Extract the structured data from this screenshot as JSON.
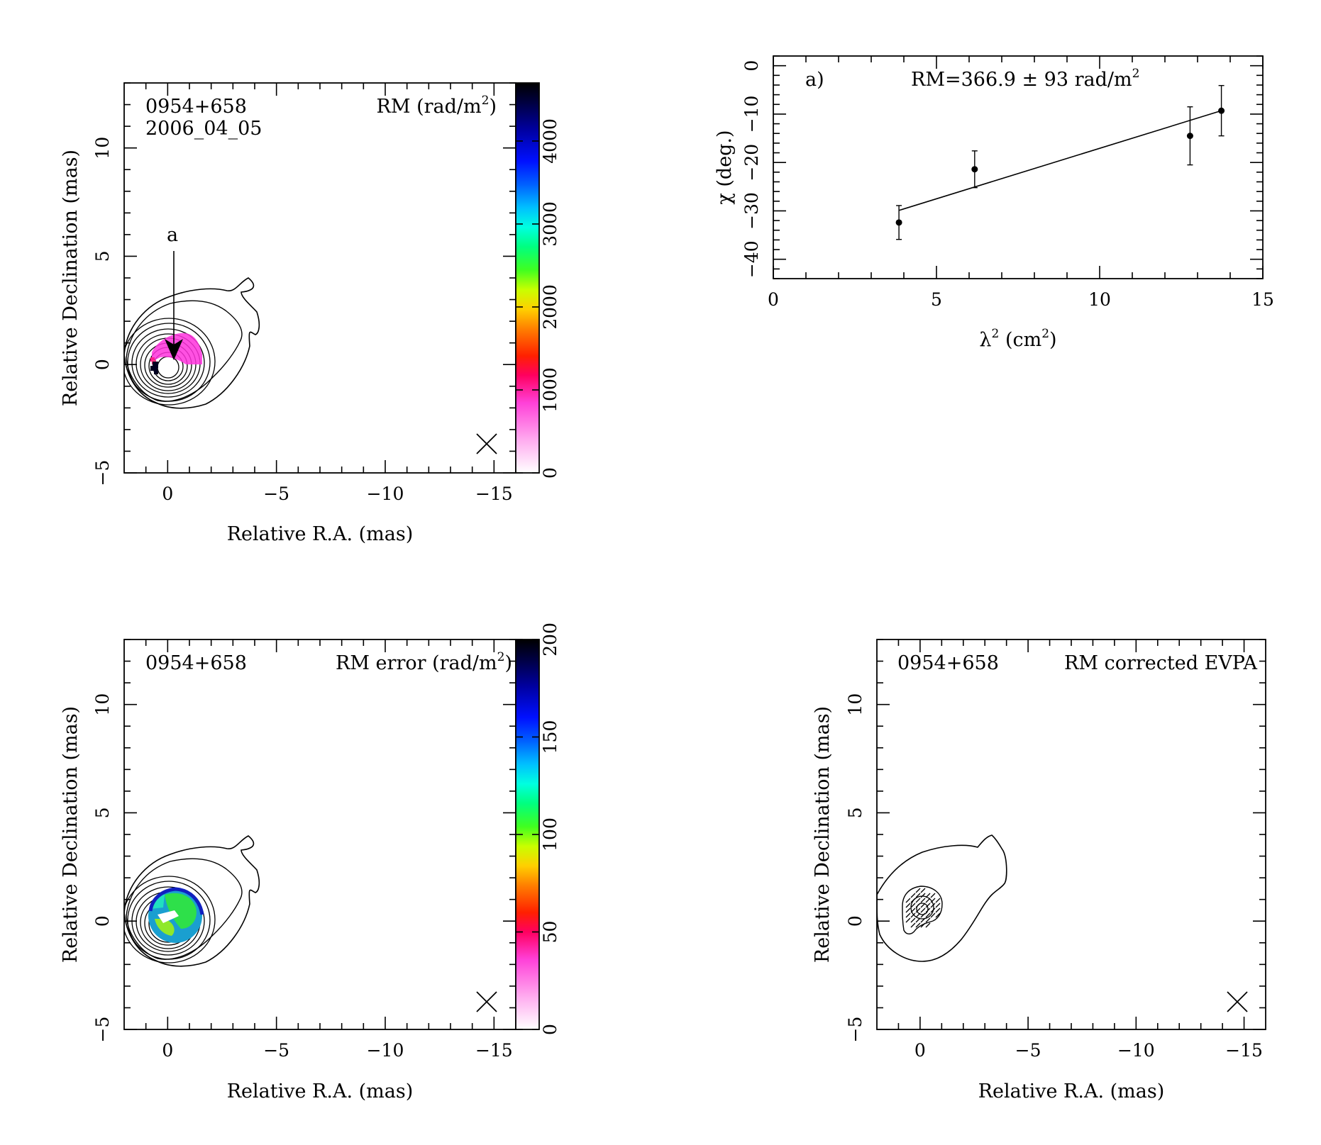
{
  "chart_data": [
    {
      "type": "heatmap",
      "panel": "rm-map",
      "source_name": "0954+658",
      "epoch": "2006_04_05",
      "map_label": "RM (rad/m",
      "map_label_sup": "2",
      "map_label_close": ")",
      "xlabel": "Relative R.A. (mas)",
      "ylabel": "Relative Declination (mas)",
      "xlim": [
        2,
        -16
      ],
      "ylim": [
        -5,
        13
      ],
      "xticks": [
        "0",
        "−5",
        "−10",
        "−15"
      ],
      "yticks": [
        "−5",
        "0",
        "5",
        "10"
      ],
      "colorbar": {
        "range": [
          0,
          4700
        ],
        "ticks": [
          "0",
          "1000",
          "2000",
          "3000",
          "4000"
        ]
      },
      "annotation": {
        "text": "a",
        "x": -0.2,
        "y": 0.3
      }
    },
    {
      "type": "scatter",
      "panel": "rm-fit",
      "panel_label": "a)",
      "fit_label": "RM=366.9 ± 93 rad/m",
      "fit_label_sup": "2",
      "xlabel_main": "λ",
      "xlabel_sup": "2",
      "xlabel_rest": " (cm",
      "xlabel_sup2": "2",
      "xlabel_close": ")",
      "ylabel": "χ (deg.)",
      "xlim": [
        0,
        15
      ],
      "ylim": [
        -44,
        2
      ],
      "xticks": [
        "0",
        "5",
        "10",
        "15"
      ],
      "yticks": [
        "−40",
        "−30",
        "−20",
        "−10",
        "0"
      ],
      "points": [
        {
          "x": 3.85,
          "y": -32.4,
          "err": 3.5
        },
        {
          "x": 6.17,
          "y": -21.4,
          "err": 3.8
        },
        {
          "x": 12.77,
          "y": -14.5,
          "err": 6.0
        },
        {
          "x": 13.73,
          "y": -9.3,
          "err": 5.2
        }
      ],
      "fit_line": {
        "x": [
          3.85,
          13.73
        ],
        "y": [
          -29.9,
          -9.3
        ]
      }
    },
    {
      "type": "heatmap",
      "panel": "rm-error-map",
      "source_name": "0954+658",
      "map_label": "RM error (rad/m",
      "map_label_sup": "2",
      "map_label_close": ")",
      "xlabel": "Relative R.A. (mas)",
      "ylabel": "Relative Declination (mas)",
      "xlim": [
        2,
        -16
      ],
      "ylim": [
        -5,
        13
      ],
      "xticks": [
        "0",
        "−5",
        "−10",
        "−15"
      ],
      "yticks": [
        "−5",
        "0",
        "5",
        "10"
      ],
      "colorbar": {
        "range": [
          0,
          200
        ],
        "ticks": [
          "0",
          "50",
          "100",
          "150",
          "200"
        ]
      }
    },
    {
      "type": "other",
      "panel": "evpa-map",
      "source_name": "0954+658",
      "map_label": "RM corrected EVPA",
      "xlabel": "Relative R.A. (mas)",
      "ylabel": "Relative Declination (mas)",
      "xlim": [
        2,
        -16
      ],
      "ylim": [
        -5,
        13
      ],
      "xticks": [
        "0",
        "−5",
        "−10",
        "−15"
      ],
      "yticks": [
        "−5",
        "0",
        "5",
        "10"
      ]
    }
  ]
}
